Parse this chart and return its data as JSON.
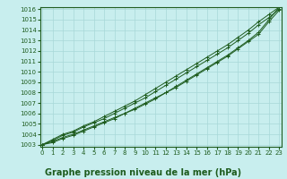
{
  "title": "",
  "xlabel": "Graphe pression niveau de la mer (hPa)",
  "ylabel": "",
  "bg_color": "#c8eeee",
  "plot_bg_color": "#c8eeee",
  "grid_color": "#a8d8d8",
  "line_color": "#1e5c1e",
  "x": [
    0,
    1,
    2,
    3,
    4,
    5,
    6,
    7,
    8,
    9,
    10,
    11,
    12,
    13,
    14,
    15,
    16,
    17,
    18,
    19,
    20,
    21,
    22,
    23
  ],
  "line1": [
    1003.0,
    1003.3,
    1003.7,
    1004.0,
    1004.4,
    1004.8,
    1005.2,
    1005.6,
    1006.0,
    1006.5,
    1007.0,
    1007.5,
    1008.0,
    1008.6,
    1009.2,
    1009.8,
    1010.4,
    1011.0,
    1011.6,
    1012.3,
    1013.0,
    1013.8,
    1015.0,
    1016.2
  ],
  "line2": [
    1003.0,
    1003.5,
    1004.0,
    1004.3,
    1004.8,
    1005.2,
    1005.7,
    1006.2,
    1006.7,
    1007.2,
    1007.8,
    1008.4,
    1009.0,
    1009.6,
    1010.2,
    1010.8,
    1011.4,
    1012.0,
    1012.6,
    1013.3,
    1014.0,
    1014.8,
    1015.5,
    1016.2
  ],
  "line3": [
    1003.0,
    1003.4,
    1003.9,
    1004.2,
    1004.7,
    1005.1,
    1005.5,
    1006.0,
    1006.5,
    1007.0,
    1007.5,
    1008.1,
    1008.7,
    1009.3,
    1009.9,
    1010.5,
    1011.1,
    1011.7,
    1012.3,
    1013.0,
    1013.7,
    1014.5,
    1015.2,
    1016.0
  ],
  "line4": [
    1003.0,
    1003.2,
    1003.6,
    1003.9,
    1004.3,
    1004.7,
    1005.1,
    1005.5,
    1006.0,
    1006.4,
    1006.9,
    1007.4,
    1008.0,
    1008.5,
    1009.1,
    1009.7,
    1010.3,
    1010.9,
    1011.5,
    1012.2,
    1012.9,
    1013.6,
    1014.8,
    1015.9
  ],
  "ylim": [
    1003,
    1016
  ],
  "xlim": [
    0,
    23
  ],
  "yticks": [
    1003,
    1004,
    1005,
    1006,
    1007,
    1008,
    1009,
    1010,
    1011,
    1012,
    1013,
    1014,
    1015,
    1016
  ],
  "xticks": [
    0,
    1,
    2,
    3,
    4,
    5,
    6,
    7,
    8,
    9,
    10,
    11,
    12,
    13,
    14,
    15,
    16,
    17,
    18,
    19,
    20,
    21,
    22,
    23
  ],
  "tick_fontsize": 5.0,
  "xlabel_fontsize": 7.0,
  "marker": "+",
  "marker_size": 3,
  "line_width": 0.7
}
